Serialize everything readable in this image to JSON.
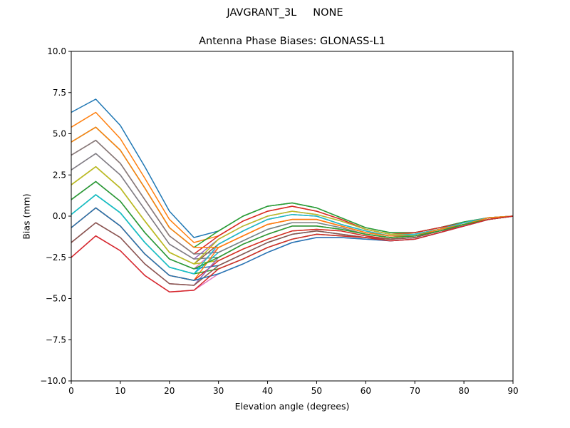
{
  "chart_data": {
    "type": "line",
    "suptitle": "JAVGRANT_3L     NONE",
    "title": "Antenna Phase Biases: GLONASS-L1",
    "xlabel": "Elevation angle (degrees)",
    "ylabel": "Bias (mm)",
    "xlim": [
      0,
      90
    ],
    "ylim": [
      -10,
      10
    ],
    "xticks": [
      0,
      10,
      20,
      30,
      40,
      50,
      60,
      70,
      80,
      90
    ],
    "yticks": [
      -10,
      -7.5,
      -5,
      -2.5,
      0,
      2.5,
      5,
      7.5,
      10
    ],
    "ytick_labels": [
      "−10.0",
      "−7.5",
      "−5.0",
      "−2.5",
      "0.0",
      "2.5",
      "5.0",
      "7.5",
      "10.0"
    ],
    "grid": false,
    "x": [
      0,
      5,
      10,
      15,
      20,
      25,
      30,
      35,
      40,
      45,
      50,
      55,
      60,
      65,
      70,
      75,
      80,
      85,
      90
    ],
    "colors": [
      "#1f77b4",
      "#ff7f0e",
      "#2ca02c",
      "#d62728",
      "#9467bd",
      "#8c564b",
      "#e377c2",
      "#7f7f7f",
      "#bcbd22",
      "#17becf"
    ],
    "series": [
      {
        "values": [
          6.3,
          7.1,
          5.5,
          3.0,
          0.3,
          -1.3,
          -0.9,
          0.0,
          0.6,
          0.8,
          0.5,
          -0.1,
          -0.7,
          -1.0,
          -1.0,
          -0.7,
          -0.35,
          -0.1,
          0
        ]
      },
      {
        "values": [
          5.4,
          6.3,
          4.7,
          2.3,
          -0.2,
          -1.6,
          -1.2,
          -0.3,
          0.3,
          0.6,
          0.3,
          -0.2,
          -0.8,
          -1.1,
          -1.0,
          -0.7,
          -0.4,
          -0.1,
          0
        ]
      },
      {
        "values": [
          4.5,
          5.4,
          4.0,
          1.7,
          -0.7,
          -1.9,
          -0.9,
          0.0,
          0.6,
          0.8,
          0.5,
          -0.1,
          -0.7,
          -1.0,
          -1.0,
          -0.7,
          -0.35,
          -0.1,
          0
        ]
      },
      {
        "values": [
          3.7,
          4.6,
          3.2,
          1.0,
          -1.2,
          -2.3,
          -1.2,
          -0.3,
          0.3,
          0.6,
          0.3,
          -0.2,
          -0.8,
          -1.1,
          -1.0,
          -0.7,
          -0.4,
          -0.1,
          0
        ]
      },
      {
        "values": [
          2.8,
          3.8,
          2.5,
          0.4,
          -1.7,
          -2.6,
          -1.4,
          -0.6,
          0.0,
          0.3,
          0.1,
          -0.3,
          -0.8,
          -1.1,
          -1.1,
          -0.8,
          -0.4,
          -0.1,
          0
        ]
      },
      {
        "values": [
          1.9,
          3.0,
          1.7,
          -0.3,
          -2.2,
          -2.9,
          -1.7,
          -0.9,
          -0.2,
          0.1,
          0.0,
          -0.5,
          -0.9,
          -1.2,
          -1.1,
          -0.8,
          -0.4,
          -0.1,
          0
        ]
      },
      {
        "values": [
          1.0,
          2.1,
          0.9,
          -1.0,
          -2.6,
          -3.2,
          -1.9,
          -1.2,
          -0.5,
          -0.2,
          -0.2,
          -0.6,
          -1.0,
          -1.2,
          -1.2,
          -0.8,
          -0.5,
          -0.1,
          0
        ]
      },
      {
        "values": [
          2.8,
          3.8,
          2.5,
          0.4,
          -1.7,
          -2.6,
          -2.5,
          -1.7,
          -1.1,
          -0.6,
          -0.6,
          -0.8,
          -1.1,
          -1.3,
          -1.2,
          -0.9,
          -0.5,
          -0.2,
          0
        ]
      },
      {
        "values": [
          1.9,
          3.0,
          1.7,
          -0.3,
          -2.2,
          -2.9,
          -2.7,
          -2.0,
          -1.4,
          -0.9,
          -0.8,
          -0.9,
          -1.2,
          -1.4,
          -1.3,
          -0.9,
          -0.5,
          -0.2,
          0
        ]
      },
      {
        "values": [
          0.1,
          1.3,
          0.2,
          -1.6,
          -3.1,
          -3.5,
          -2.2,
          -1.5,
          -0.8,
          -0.4,
          -0.4,
          -0.7,
          -1.1,
          -1.3,
          -1.2,
          -0.9,
          -0.5,
          -0.2,
          0
        ]
      },
      {
        "values": [
          1.0,
          2.1,
          0.9,
          -1.0,
          -2.6,
          -3.2,
          -3.0,
          -2.3,
          -1.6,
          -1.1,
          -0.9,
          -1.1,
          -1.3,
          -1.4,
          -1.3,
          -0.9,
          -0.6,
          -0.2,
          0
        ]
      },
      {
        "values": [
          -0.7,
          0.5,
          -0.6,
          -2.3,
          -3.6,
          -3.9,
          -1.9,
          -1.2,
          -0.5,
          -0.2,
          -0.2,
          -0.6,
          -1.0,
          -1.2,
          -1.2,
          -0.8,
          -0.5,
          -0.1,
          0
        ]
      },
      {
        "values": [
          0.1,
          1.3,
          0.2,
          -1.6,
          -3.1,
          -3.5,
          -3.2,
          -2.6,
          -1.9,
          -1.4,
          -1.1,
          -1.2,
          -1.3,
          -1.5,
          -1.4,
          -1.0,
          -0.6,
          -0.2,
          0
        ]
      },
      {
        "values": [
          -0.7,
          0.5,
          -0.6,
          -2.3,
          -3.6,
          -3.9,
          -2.7,
          -2.0,
          -1.4,
          -0.9,
          -0.8,
          -0.9,
          -1.2,
          -1.4,
          -1.3,
          -0.9,
          -0.5,
          -0.2,
          0
        ]
      },
      {
        "values": [
          -1.6,
          -0.4,
          -1.3,
          -2.9,
          -4.1,
          -4.2,
          -2.5,
          -1.7,
          -1.1,
          -0.6,
          -0.6,
          -0.8,
          -1.1,
          -1.3,
          -1.2,
          -0.9,
          -0.5,
          -0.2,
          0
        ]
      },
      {
        "values": [
          -1.6,
          -0.4,
          -1.3,
          -2.9,
          -4.1,
          -4.2,
          -3.0,
          -2.3,
          -1.6,
          -1.1,
          -0.9,
          -1.1,
          -1.3,
          -1.4,
          -1.3,
          -0.9,
          -0.6,
          -0.2,
          0
        ]
      },
      {
        "values": [
          -2.5,
          -1.2,
          -2.1,
          -3.6,
          -4.6,
          -4.5,
          -3.5,
          -2.9,
          -2.2,
          -1.6,
          -1.3,
          -1.3,
          -1.4,
          -1.5,
          -1.4,
          -1.0,
          -0.6,
          -0.2,
          0
        ]
      },
      {
        "values": [
          3.7,
          4.6,
          3.2,
          1.0,
          -1.2,
          -2.3,
          -2.2,
          -1.5,
          -0.8,
          -0.4,
          -0.4,
          -0.7,
          -1.1,
          -1.3,
          -1.2,
          -0.9,
          -0.5,
          -0.2,
          0
        ]
      },
      {
        "values": [
          1.9,
          3.0,
          1.7,
          -0.3,
          -2.2,
          -2.9,
          -1.4,
          -0.6,
          0.0,
          0.3,
          0.1,
          -0.3,
          -0.8,
          -1.1,
          -1.1,
          -0.8,
          -0.4,
          -0.1,
          0
        ]
      },
      {
        "values": [
          0.1,
          1.3,
          0.2,
          -1.6,
          -3.1,
          -3.5,
          -1.7,
          -0.9,
          -0.2,
          0.1,
          0.0,
          -0.5,
          -0.9,
          -1.2,
          -1.1,
          -0.8,
          -0.4,
          -0.1,
          0
        ]
      },
      {
        "values": [
          -0.7,
          0.5,
          -0.6,
          -2.3,
          -3.6,
          -3.9,
          -3.5,
          -2.9,
          -2.2,
          -1.6,
          -1.3,
          -1.3,
          -1.4,
          -1.5,
          -1.4,
          -1.0,
          -0.6,
          -0.2,
          0
        ]
      },
      {
        "values": [
          4.5,
          5.4,
          4.0,
          1.7,
          -0.7,
          -1.9,
          -1.9,
          -1.2,
          -0.5,
          -0.2,
          -0.2,
          -0.6,
          -1.0,
          -1.2,
          -1.2,
          -0.8,
          -0.5,
          -0.1,
          0
        ]
      },
      {
        "values": [
          1.0,
          2.1,
          0.9,
          -1.0,
          -2.6,
          -3.2,
          -2.5,
          -1.7,
          -1.1,
          -0.6,
          -0.6,
          -0.8,
          -1.1,
          -1.3,
          -1.2,
          -0.9,
          -0.5,
          -0.2,
          0
        ]
      },
      {
        "values": [
          -2.5,
          -1.2,
          -2.1,
          -3.6,
          -4.6,
          -4.5,
          -3.2,
          -2.6,
          -1.9,
          -1.4,
          -1.1,
          -1.2,
          -1.3,
          -1.5,
          -1.4,
          -1.0,
          -0.6,
          -0.2,
          0
        ]
      }
    ]
  }
}
